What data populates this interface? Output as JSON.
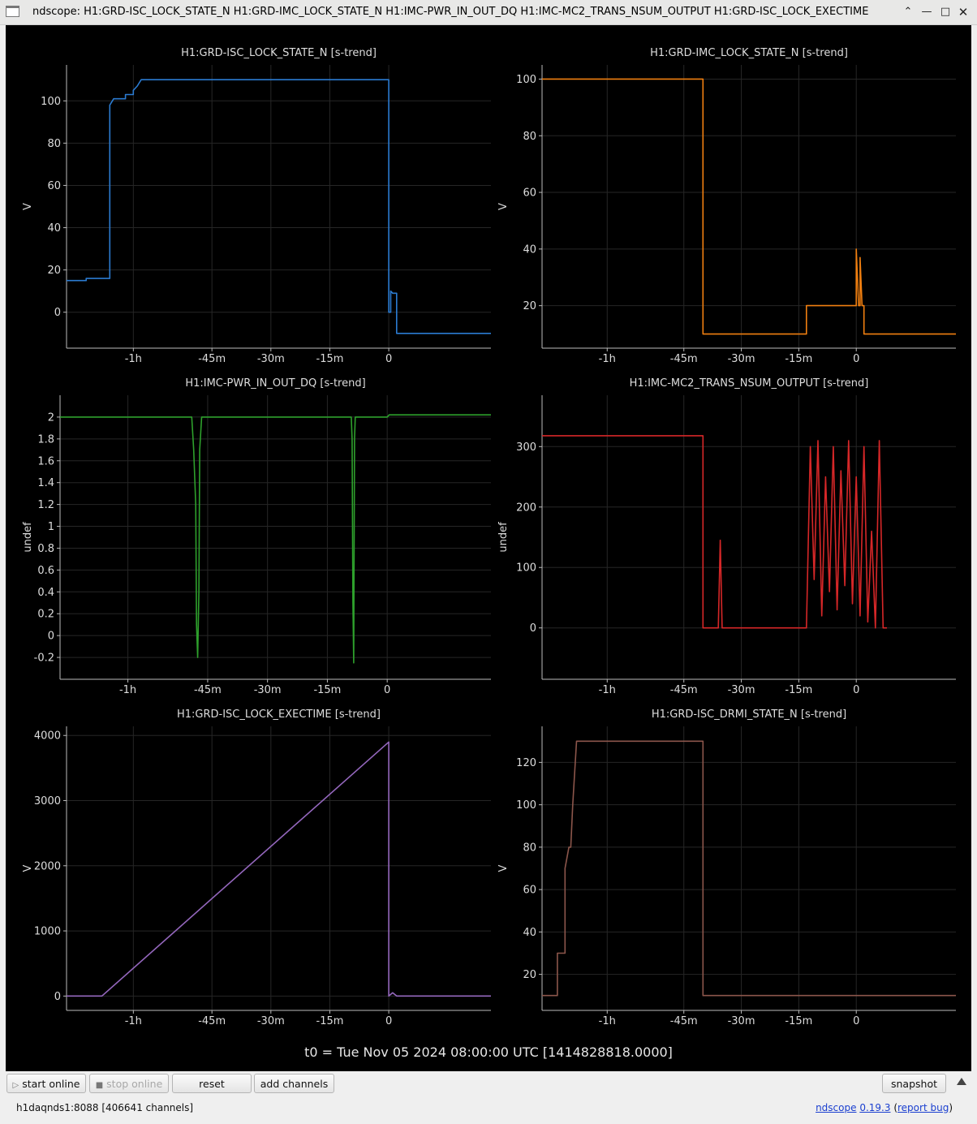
{
  "window": {
    "title": "ndscope: H1:GRD-ISC_LOCK_STATE_N H1:GRD-IMC_LOCK_STATE_N H1:IMC-PWR_IN_OUT_DQ H1:IMC-MC2_TRANS_NSUM_OUTPUT H1:GRD-ISC_LOCK_EXECTIME",
    "controls": [
      "chevron-up-icon",
      "minimize-icon",
      "maximize-icon",
      "close-icon"
    ]
  },
  "t0_label": "t0 = Tue Nov 05 2024 08:00:00 UTC [1414828818.0000]",
  "toolbar": {
    "start_online": "start online",
    "stop_online": "stop online",
    "reset": "reset",
    "add_channels": "add channels",
    "snapshot": "snapshot"
  },
  "status": {
    "server": "h1daqnds1:8088  [406641 channels]",
    "app_name": "ndscope",
    "version": "0.19.3",
    "report": "report bug"
  },
  "chart_data": [
    {
      "type": "line",
      "title": "H1:GRD-ISC_LOCK_STATE_N [s-trend]",
      "ylabel": "V",
      "color": "#2b7bd1",
      "xlim": [
        -82,
        26
      ],
      "ylim": [
        -17,
        117
      ],
      "xticks": [
        {
          "v": -65,
          "l": "-1h"
        },
        {
          "v": -45,
          "l": "-45m"
        },
        {
          "v": -30,
          "l": "-30m"
        },
        {
          "v": -15,
          "l": "-15m"
        },
        {
          "v": 0,
          "l": "0"
        }
      ],
      "yticks": [
        0,
        20,
        40,
        60,
        80,
        100
      ],
      "points": [
        [
          -82,
          15
        ],
        [
          -77,
          15
        ],
        [
          -77,
          16
        ],
        [
          -71,
          16
        ],
        [
          -71,
          98
        ],
        [
          -70,
          101
        ],
        [
          -67,
          101
        ],
        [
          -67,
          103
        ],
        [
          -65,
          103
        ],
        [
          -65,
          105
        ],
        [
          -64,
          107
        ],
        [
          -63,
          110
        ],
        [
          0,
          110
        ],
        [
          0,
          0
        ],
        [
          0.5,
          0
        ],
        [
          0.5,
          10
        ],
        [
          1,
          9
        ],
        [
          2,
          9
        ],
        [
          2,
          -10
        ],
        [
          26,
          -10
        ]
      ]
    },
    {
      "type": "line",
      "title": "H1:GRD-IMC_LOCK_STATE_N [s-trend]",
      "ylabel": "V",
      "color": "#f07f10",
      "xlim": [
        -82,
        26
      ],
      "ylim": [
        5,
        105
      ],
      "xticks": [
        {
          "v": -65,
          "l": "-1h"
        },
        {
          "v": -45,
          "l": "-45m"
        },
        {
          "v": -30,
          "l": "-30m"
        },
        {
          "v": -15,
          "l": "-15m"
        },
        {
          "v": 0,
          "l": "0"
        }
      ],
      "yticks": [
        20,
        40,
        60,
        80,
        100
      ],
      "points": [
        [
          -82,
          100
        ],
        [
          -40,
          100
        ],
        [
          -40,
          10
        ],
        [
          -13,
          10
        ],
        [
          -13,
          20
        ],
        [
          0,
          20
        ],
        [
          0,
          40
        ],
        [
          0.6,
          20
        ],
        [
          1,
          20
        ],
        [
          1,
          37
        ],
        [
          1.5,
          20
        ],
        [
          2,
          20
        ],
        [
          2,
          10
        ],
        [
          26,
          10
        ]
      ]
    },
    {
      "type": "line",
      "title": "H1:IMC-PWR_IN_OUT_DQ [s-trend]",
      "ylabel": "undef",
      "color": "#2ea02c",
      "xlim": [
        -82,
        26
      ],
      "ylim": [
        -0.4,
        2.2
      ],
      "xticks": [
        {
          "v": -65,
          "l": "-1h"
        },
        {
          "v": -45,
          "l": "-45m"
        },
        {
          "v": -30,
          "l": "-30m"
        },
        {
          "v": -15,
          "l": "-15m"
        },
        {
          "v": 0,
          "l": "0"
        }
      ],
      "yticks": [
        -0.2,
        0,
        0.2,
        0.4,
        0.6,
        0.8,
        1,
        1.2,
        1.4,
        1.6,
        1.8,
        2
      ],
      "points": [
        [
          -82,
          2
        ],
        [
          -49,
          2
        ],
        [
          -48.5,
          1.7
        ],
        [
          -48,
          1.2
        ],
        [
          -47.8,
          0.1
        ],
        [
          -47.5,
          -0.2
        ],
        [
          -47.2,
          0.4
        ],
        [
          -47,
          1.7
        ],
        [
          -46.5,
          2
        ],
        [
          -9,
          2
        ],
        [
          -8.8,
          1.8
        ],
        [
          -8.6,
          0.3
        ],
        [
          -8.4,
          -0.25
        ],
        [
          -8.2,
          1.8
        ],
        [
          -8,
          2
        ],
        [
          0,
          2
        ],
        [
          0.5,
          2.02
        ],
        [
          26,
          2.02
        ]
      ]
    },
    {
      "type": "line",
      "title": "H1:IMC-MC2_TRANS_NSUM_OUTPUT [s-trend]",
      "ylabel": "undef",
      "color": "#d62728",
      "xlim": [
        -82,
        26
      ],
      "ylim": [
        -85,
        385
      ],
      "xticks": [
        {
          "v": -65,
          "l": "-1h"
        },
        {
          "v": -45,
          "l": "-45m"
        },
        {
          "v": -30,
          "l": "-30m"
        },
        {
          "v": -15,
          "l": "-15m"
        },
        {
          "v": 0,
          "l": "0"
        }
      ],
      "yticks": [
        0,
        100,
        200,
        300
      ],
      "points": [
        [
          -82,
          318
        ],
        [
          -40,
          318
        ],
        [
          -40,
          0
        ],
        [
          -36,
          0
        ],
        [
          -35.5,
          145
        ],
        [
          -35,
          0
        ],
        [
          -13,
          0
        ],
        [
          -12,
          300
        ],
        [
          -11,
          80
        ],
        [
          -10,
          310
        ],
        [
          -9,
          20
        ],
        [
          -8,
          250
        ],
        [
          -7,
          60
        ],
        [
          -6,
          300
        ],
        [
          -5,
          30
        ],
        [
          -4,
          260
        ],
        [
          -3,
          70
        ],
        [
          -2,
          310
        ],
        [
          -1,
          40
        ],
        [
          0,
          250
        ],
        [
          1,
          20
        ],
        [
          2,
          300
        ],
        [
          3,
          10
        ],
        [
          4,
          160
        ],
        [
          5,
          0
        ],
        [
          6,
          310
        ],
        [
          7,
          0
        ],
        [
          8,
          0
        ]
      ]
    },
    {
      "type": "line",
      "title": "H1:GRD-ISC_LOCK_EXECTIME [s-trend]",
      "ylabel": "V",
      "color": "#9467bd",
      "xlim": [
        -82,
        26
      ],
      "ylim": [
        -220,
        4140
      ],
      "xticks": [
        {
          "v": -65,
          "l": "-1h"
        },
        {
          "v": -45,
          "l": "-45m"
        },
        {
          "v": -30,
          "l": "-30m"
        },
        {
          "v": -15,
          "l": "-15m"
        },
        {
          "v": 0,
          "l": "0"
        }
      ],
      "yticks": [
        0,
        1000,
        2000,
        3000,
        4000
      ],
      "points": [
        [
          -82,
          0
        ],
        [
          -73,
          0
        ],
        [
          0,
          3900
        ],
        [
          0,
          0
        ],
        [
          1,
          50
        ],
        [
          2,
          0
        ],
        [
          26,
          0
        ]
      ]
    },
    {
      "type": "line",
      "title": "H1:GRD-ISC_DRMI_STATE_N [s-trend]",
      "ylabel": "V",
      "color": "#8c564b",
      "xlim": [
        -82,
        26
      ],
      "ylim": [
        3,
        137
      ],
      "xticks": [
        {
          "v": -65,
          "l": "-1h"
        },
        {
          "v": -45,
          "l": "-45m"
        },
        {
          "v": -30,
          "l": "-30m"
        },
        {
          "v": -15,
          "l": "-15m"
        },
        {
          "v": 0,
          "l": "0"
        }
      ],
      "yticks": [
        20,
        40,
        60,
        80,
        100,
        120
      ],
      "points": [
        [
          -82,
          10
        ],
        [
          -78,
          10
        ],
        [
          -78,
          30
        ],
        [
          -76,
          30
        ],
        [
          -76,
          70
        ],
        [
          -75,
          80
        ],
        [
          -74.5,
          80
        ],
        [
          -74,
          100
        ],
        [
          -73,
          130
        ],
        [
          -40,
          130
        ],
        [
          -40,
          10
        ],
        [
          26,
          10
        ]
      ]
    }
  ]
}
